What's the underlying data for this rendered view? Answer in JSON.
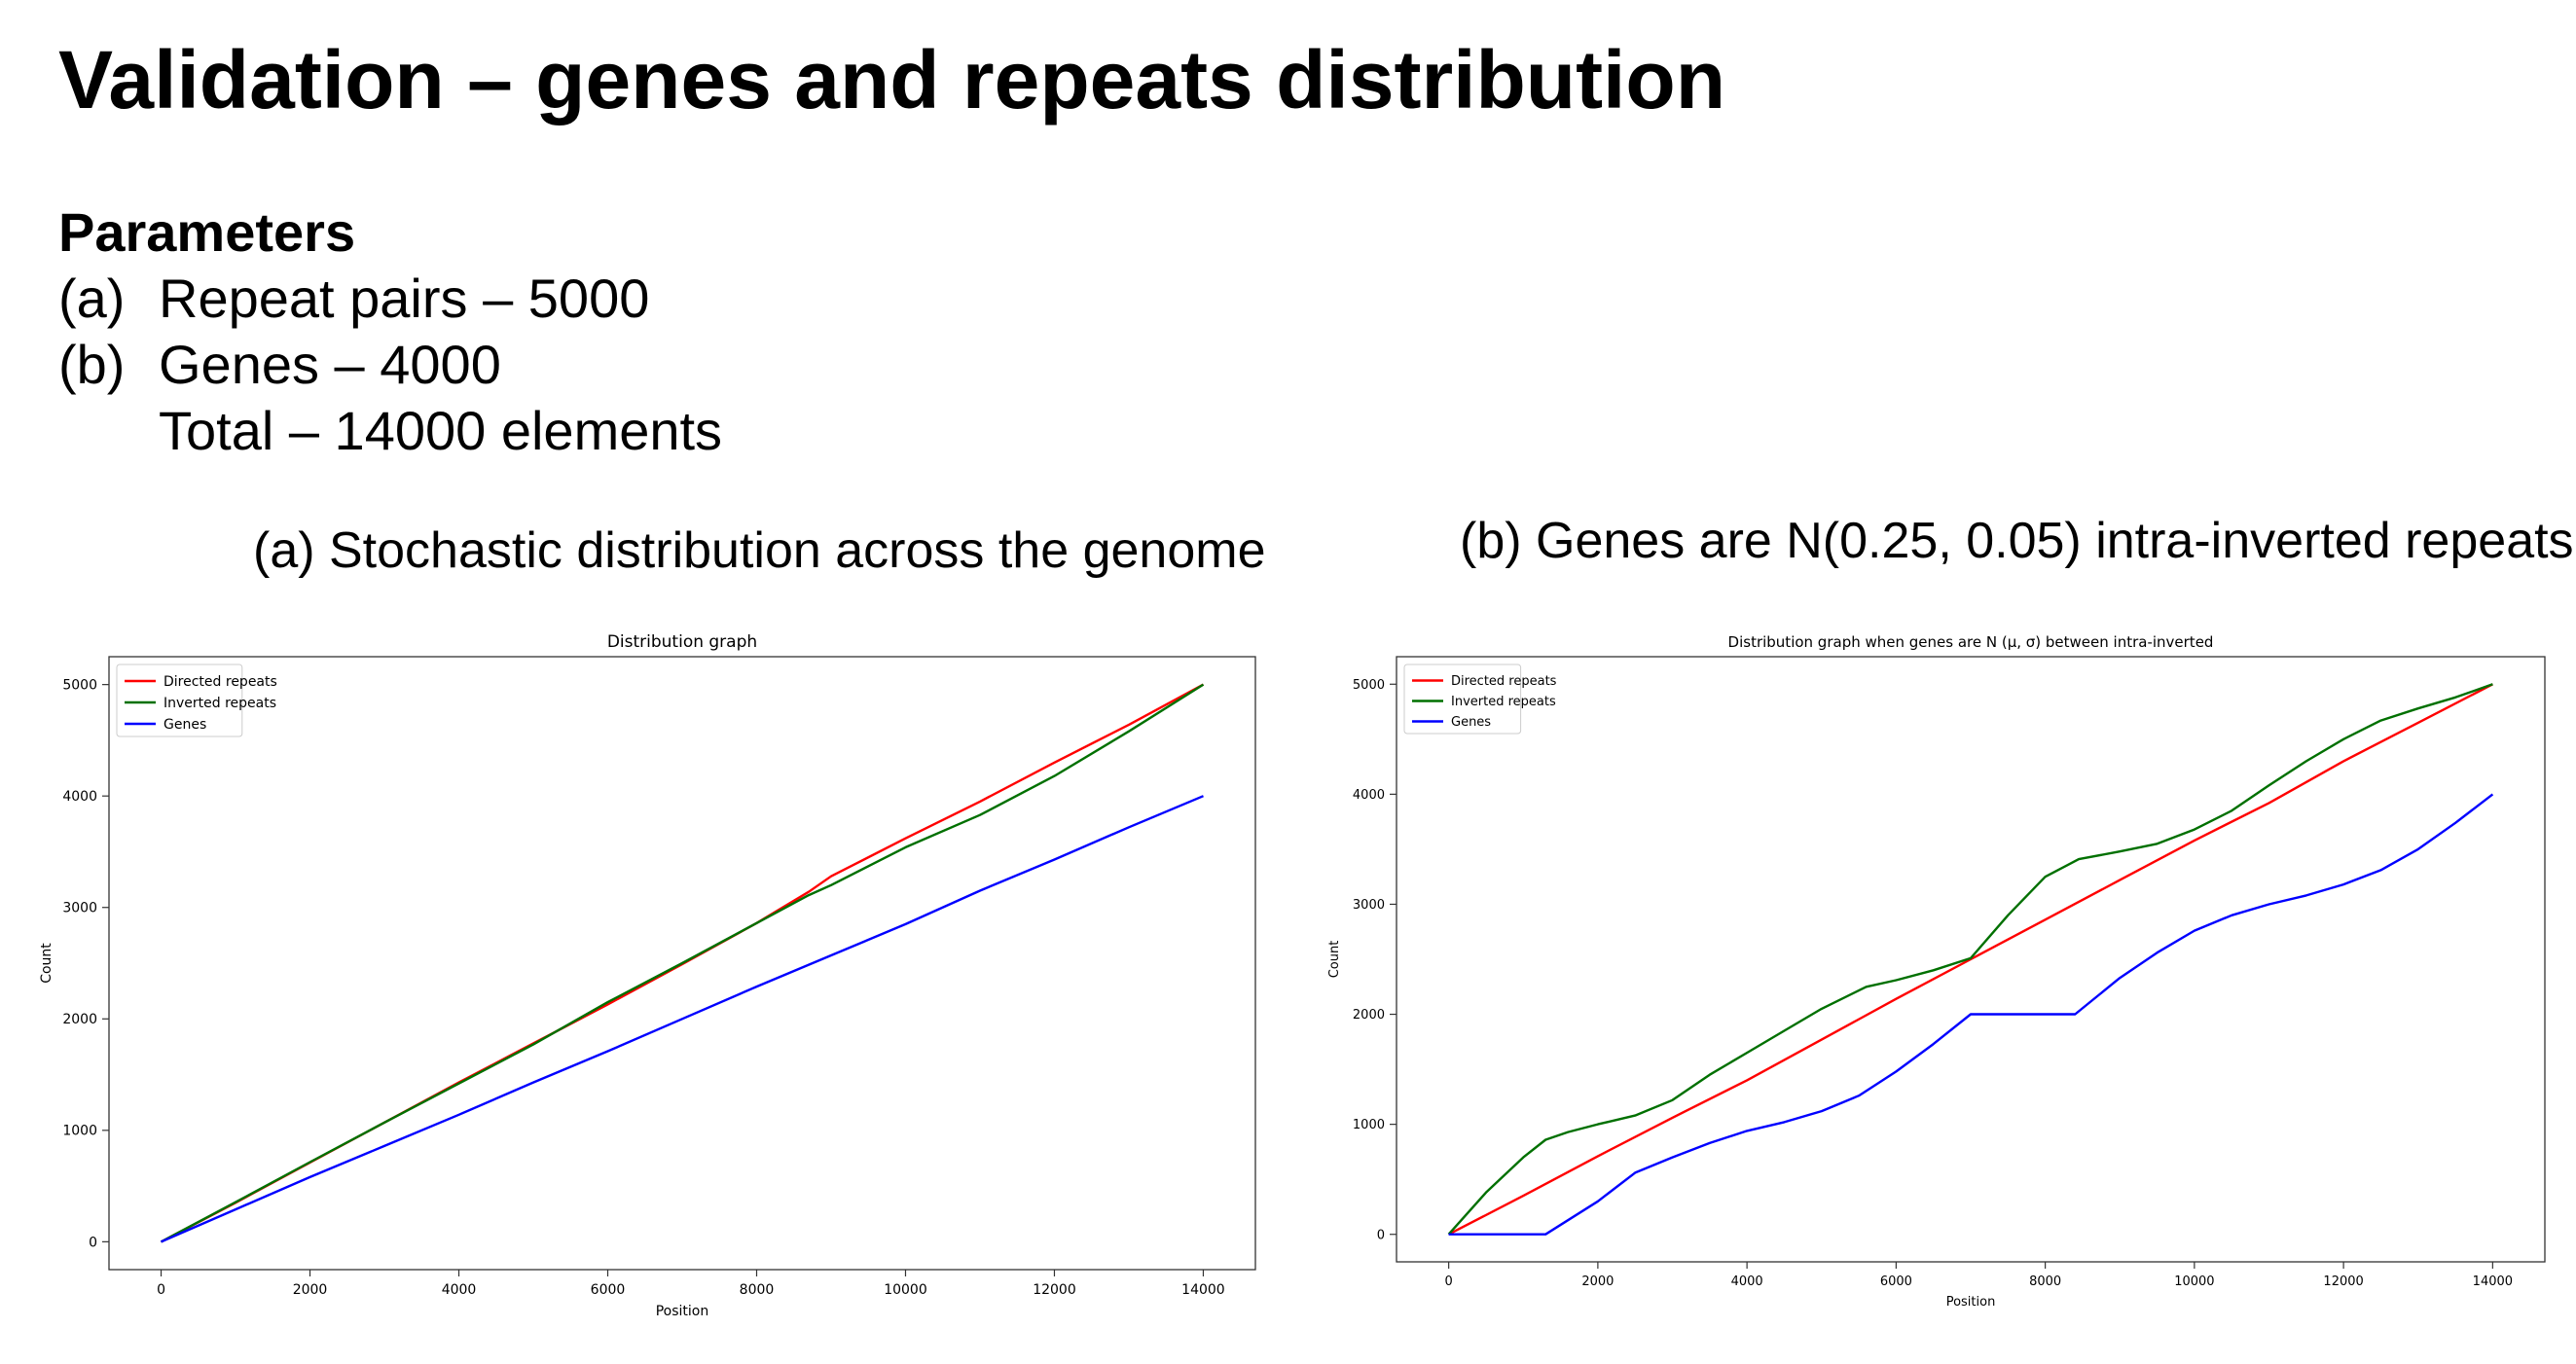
{
  "slide": {
    "title": "Validation – genes and repeats distribution",
    "params_heading": "Parameters",
    "params": [
      {
        "label": "(a)",
        "text": "Repeat pairs – 5000"
      },
      {
        "label": "(b)",
        "text": "Genes – 4000"
      },
      {
        "label": "",
        "text": "Total – 14000 elements"
      }
    ],
    "subtitle_a": "(a) Stochastic distribution across the genome",
    "subtitle_b": "(b) Genes are N(0.25, 0.05) intra-inverted repeats"
  },
  "colors": {
    "directed": "#ff0000",
    "inverted": "#007000",
    "genes": "#0000ff"
  },
  "chart_data": [
    {
      "type": "line",
      "title": "Distribution graph",
      "xlabel": "Position",
      "ylabel": "Count",
      "xlim": [
        -700,
        14700
      ],
      "ylim": [
        -250,
        5250
      ],
      "xticks": [
        0,
        2000,
        4000,
        6000,
        8000,
        10000,
        12000,
        14000
      ],
      "yticks": [
        0,
        1000,
        2000,
        3000,
        4000,
        5000
      ],
      "legend": "top-left",
      "grid": false,
      "series": [
        {
          "name": "Directed repeats",
          "color": "#ff0000",
          "x": [
            0,
            1000,
            2000,
            3000,
            4000,
            5000,
            6000,
            7000,
            8000,
            8700,
            9000,
            10000,
            11000,
            12000,
            13000,
            14000
          ],
          "y": [
            0,
            350,
            710,
            1070,
            1430,
            1780,
            2130,
            2490,
            2860,
            3140,
            3280,
            3620,
            3950,
            4300,
            4640,
            5000
          ]
        },
        {
          "name": "Inverted repeats",
          "color": "#007000",
          "x": [
            0,
            1000,
            2000,
            3000,
            4000,
            5000,
            6000,
            7000,
            8000,
            8700,
            9000,
            10000,
            11000,
            12000,
            13000,
            14000
          ],
          "y": [
            0,
            355,
            715,
            1070,
            1420,
            1770,
            2150,
            2500,
            2860,
            3110,
            3200,
            3540,
            3830,
            4180,
            4580,
            5000
          ]
        },
        {
          "name": "Genes",
          "color": "#0000ff",
          "x": [
            0,
            1000,
            2000,
            3000,
            4000,
            5000,
            6000,
            7000,
            8000,
            9000,
            10000,
            11000,
            12000,
            13000,
            14000
          ],
          "y": [
            0,
            290,
            580,
            860,
            1140,
            1430,
            1710,
            2000,
            2290,
            2570,
            2850,
            3150,
            3430,
            3720,
            4000
          ]
        }
      ]
    },
    {
      "type": "line",
      "title": "Distribution graph when genes are N (μ, σ) between intra-inverted",
      "xlabel": "Position",
      "ylabel": "Count",
      "xlim": [
        -700,
        14700
      ],
      "ylim": [
        -250,
        5250
      ],
      "xticks": [
        0,
        2000,
        4000,
        6000,
        8000,
        10000,
        12000,
        14000
      ],
      "yticks": [
        0,
        1000,
        2000,
        3000,
        4000,
        5000
      ],
      "legend": "top-left",
      "grid": false,
      "series": [
        {
          "name": "Directed repeats",
          "color": "#ff0000",
          "x": [
            0,
            1000,
            2000,
            3000,
            4000,
            5000,
            6000,
            7000,
            8000,
            9000,
            10000,
            11000,
            12000,
            13000,
            14000
          ],
          "y": [
            0,
            350,
            710,
            1060,
            1400,
            1770,
            2140,
            2500,
            2860,
            3220,
            3580,
            3920,
            4300,
            4650,
            5000
          ]
        },
        {
          "name": "Inverted repeats",
          "color": "#007000",
          "x": [
            0,
            500,
            1000,
            1300,
            1600,
            2000,
            2500,
            3000,
            3500,
            4000,
            4500,
            5000,
            5600,
            6000,
            6500,
            7000,
            7500,
            8000,
            8450,
            9000,
            9500,
            10000,
            10500,
            11000,
            11500,
            12000,
            12500,
            13000,
            13500,
            14000
          ],
          "y": [
            0,
            380,
            700,
            860,
            930,
            1000,
            1080,
            1220,
            1450,
            1650,
            1850,
            2050,
            2250,
            2310,
            2400,
            2510,
            2900,
            3250,
            3410,
            3480,
            3550,
            3680,
            3850,
            4080,
            4300,
            4500,
            4670,
            4780,
            4880,
            5000
          ]
        },
        {
          "name": "Genes",
          "color": "#0000ff",
          "x": [
            0,
            1300,
            2000,
            2500,
            3000,
            3500,
            4000,
            4500,
            5000,
            5500,
            6000,
            6500,
            7000,
            8400,
            9000,
            9500,
            10000,
            10500,
            11000,
            11500,
            12000,
            12500,
            13000,
            13500,
            14000
          ],
          "y": [
            0,
            0,
            300,
            560,
            700,
            830,
            940,
            1020,
            1120,
            1260,
            1480,
            1730,
            2000,
            2000,
            2330,
            2560,
            2760,
            2900,
            3000,
            3080,
            3180,
            3310,
            3500,
            3740,
            4000
          ]
        }
      ]
    }
  ]
}
